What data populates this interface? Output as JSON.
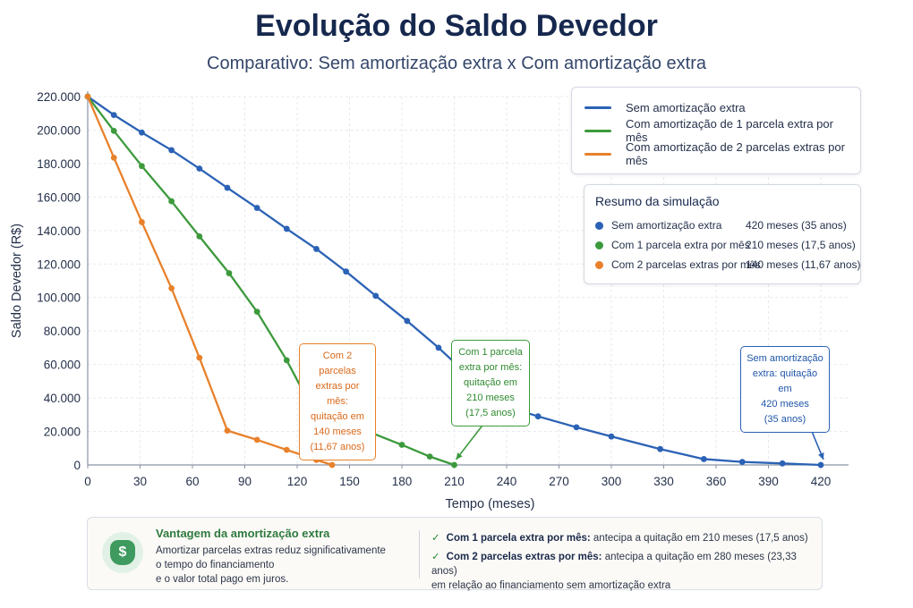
{
  "title": "Evolução do Saldo Devedor",
  "subtitle": "Comparativo: Sem amortização extra x Com amortização extra",
  "colors": {
    "blue": "#2b62b5",
    "green": "#3c9a3c",
    "orange": "#e8812b",
    "title": "#16284e"
  },
  "chart_data": {
    "type": "line",
    "xlabel": "Tempo (meses)",
    "ylabel": "Saldo Devedor (R$)",
    "xlim": [
      0,
      420
    ],
    "ylim": [
      0,
      220000
    ],
    "x_ticks": [
      "0",
      "30",
      "60",
      "90",
      "120",
      "150",
      "180",
      "210",
      "240",
      "270",
      "300",
      "330",
      "360",
      "390",
      "420"
    ],
    "x_tick_values": [
      0,
      30,
      60,
      90,
      120,
      150,
      180,
      210,
      240,
      270,
      300,
      330,
      360,
      390,
      420
    ],
    "y_ticks": [
      "0",
      "20.000",
      "40.000",
      "60.000",
      "80.000",
      "100.000",
      "120.000",
      "140.000",
      "160.000",
      "180.000",
      "200.000",
      "220.000"
    ],
    "y_tick_values": [
      0,
      20000,
      40000,
      60000,
      80000,
      100000,
      120000,
      140000,
      160000,
      180000,
      200000,
      220000
    ],
    "grid": true,
    "legend_position": "top-right",
    "series": [
      {
        "name": "Sem amortização extra",
        "color": "#2b62b5",
        "x": [
          0,
          15,
          31,
          48,
          64,
          80,
          97,
          114,
          131,
          148,
          165,
          183,
          201,
          219,
          238,
          258,
          280,
          300,
          328,
          353,
          375,
          398,
          420
        ],
        "y": [
          220000,
          209000,
          198500,
          188000,
          177000,
          165500,
          153500,
          141000,
          129000,
          115500,
          101000,
          86000,
          70000,
          52500,
          35500,
          29000,
          22500,
          17000,
          9500,
          3500,
          1800,
          900,
          0
        ]
      },
      {
        "name": "Com amortização de 1 parcela extra por mês",
        "color": "#3c9a3c",
        "x": [
          0,
          15,
          31,
          48,
          64,
          81,
          97,
          114,
          130,
          147,
          163,
          180,
          196,
          210
        ],
        "y": [
          220000,
          199500,
          178500,
          157500,
          136500,
          114500,
          91500,
          62500,
          31000,
          25000,
          19000,
          12000,
          5000,
          0
        ]
      },
      {
        "name": "Com amortização de 2 parcelas extras por mês",
        "color": "#e8812b",
        "x": [
          0,
          15,
          31,
          48,
          64,
          80,
          97,
          114,
          131,
          140
        ],
        "y": [
          220000,
          183500,
          145000,
          105500,
          64000,
          20500,
          15000,
          9000,
          3000,
          0
        ]
      }
    ],
    "annotations": [
      {
        "series": "Com amortização de 2 parcelas extras por mês",
        "x": 140,
        "lines": [
          "Com 2 parcelas",
          "extras por mês:",
          "quitação em",
          "140 meses",
          "(11,67 anos)"
        ]
      },
      {
        "series": "Com amortização de 1 parcela extra por mês",
        "x": 210,
        "lines": [
          "Com 1 parcela",
          "extra por mês:",
          "quitação em",
          "210 meses",
          "(17,5 anos)"
        ]
      },
      {
        "series": "Sem amortização extra",
        "x": 420,
        "lines": [
          "Sem amortização",
          "extra: quitação em",
          "420 meses",
          "(35 anos)"
        ]
      }
    ]
  },
  "legend": {
    "items": [
      {
        "label": "Sem amortização extra",
        "color": "#2b62b5"
      },
      {
        "label": "Com amortização de 1 parcela extra por mês",
        "color": "#3c9a3c"
      },
      {
        "label": "Com amortização de 2 parcelas extras por mês",
        "color": "#e8812b"
      }
    ]
  },
  "summary": {
    "title": "Resumo da simulação",
    "rows": [
      {
        "name": "Sem amortização extra",
        "value": "420 meses (35 anos)",
        "color": "#2b62b5"
      },
      {
        "name": "Com 1 parcela extra por mês",
        "value": "210 meses (17,5 anos)",
        "color": "#3c9a3c"
      },
      {
        "name": "Com 2 parcelas extras por mês",
        "value": "140 meses (11,67 anos)",
        "color": "#e8812b"
      }
    ]
  },
  "advantage": {
    "icon": "money-bag-icon",
    "title": "Vantagem da amortização extra",
    "text_lines": [
      "Amortizar parcelas extras reduz significativamente",
      "o tempo do financiamento",
      "e o valor total pago em juros."
    ],
    "benefits": [
      {
        "bold": "Com 1 parcela extra por mês:",
        "text": " antecipa a quitação em 210 meses (17,5 anos)",
        "line2": ""
      },
      {
        "bold": "Com 2 parcelas extras por mês:",
        "text": " antecipa a quitação em 280 meses (23,33 anos)",
        "line2": "em relação ao financiamento sem amortização extra"
      }
    ]
  }
}
